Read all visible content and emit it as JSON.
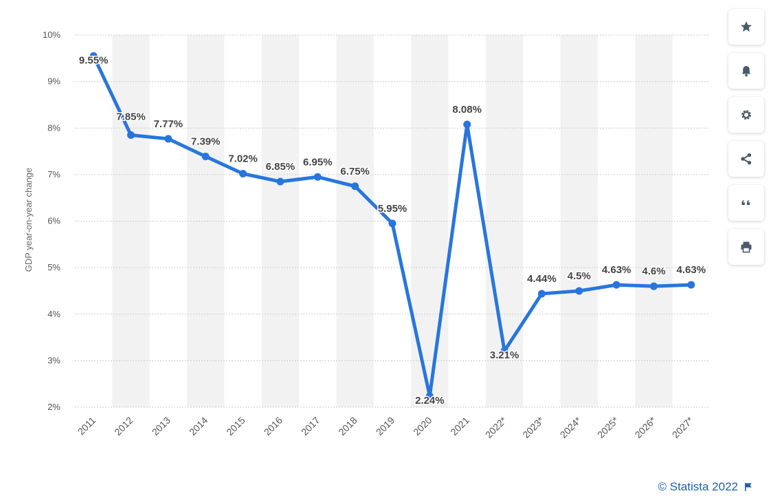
{
  "chart_data": {
    "type": "line",
    "title": "",
    "xlabel": "",
    "ylabel": "GDP year-on-year change",
    "categories": [
      "2011",
      "2012",
      "2013",
      "2014",
      "2015",
      "2016",
      "2017",
      "2018",
      "2019",
      "2020",
      "2021",
      "2022*",
      "2023*",
      "2024*",
      "2025*",
      "2026*",
      "2027*"
    ],
    "series": [
      {
        "values": [
          9.55,
          7.85,
          7.77,
          7.39,
          7.02,
          6.85,
          6.95,
          6.75,
          5.95,
          2.24,
          8.08,
          3.21,
          4.44,
          4.5,
          4.63,
          4.6,
          4.63
        ],
        "labels": [
          "9.55%",
          "7.85%",
          "7.77%",
          "7.39%",
          "7.02%",
          "6.85%",
          "6.95%",
          "6.75%",
          "5.95%",
          "2.24%",
          "8.08%",
          "3.21%",
          "4.44%",
          "4.5%",
          "4.63%",
          "4.6%",
          "4.63%"
        ]
      }
    ],
    "ylim": [
      2,
      10
    ],
    "yticks": [
      2,
      3,
      4,
      5,
      6,
      7,
      8,
      9,
      10
    ],
    "ytick_labels": [
      "2%",
      "3%",
      "4%",
      "5%",
      "6%",
      "7%",
      "8%",
      "9%",
      "10%"
    ],
    "grid": true,
    "legend": "none",
    "colors": {
      "line": "#2876dd",
      "band": "#f2f2f2",
      "grid": "#cccccc"
    }
  },
  "toolbar": {
    "items": [
      {
        "icon": "star-icon",
        "name": "favorite-button"
      },
      {
        "icon": "bell-icon",
        "name": "notification-button"
      },
      {
        "icon": "gear-icon",
        "name": "settings-button"
      },
      {
        "icon": "share-icon",
        "name": "share-button"
      },
      {
        "icon": "quote-icon",
        "name": "cite-button"
      },
      {
        "icon": "print-icon",
        "name": "print-button"
      }
    ],
    "icon_color": "#4a5a6b"
  },
  "footer": {
    "credit": "© Statista 2022",
    "flag_icon": "flag-icon"
  }
}
